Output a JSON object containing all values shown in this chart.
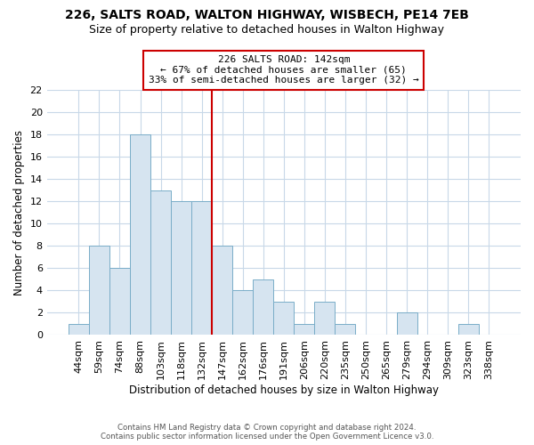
{
  "title_line1": "226, SALTS ROAD, WALTON HIGHWAY, WISBECH, PE14 7EB",
  "title_line2": "Size of property relative to detached houses in Walton Highway",
  "xlabel": "Distribution of detached houses by size in Walton Highway",
  "ylabel": "Number of detached properties",
  "bar_labels": [
    "44sqm",
    "59sqm",
    "74sqm",
    "88sqm",
    "103sqm",
    "118sqm",
    "132sqm",
    "147sqm",
    "162sqm",
    "176sqm",
    "191sqm",
    "206sqm",
    "220sqm",
    "235sqm",
    "250sqm",
    "265sqm",
    "279sqm",
    "294sqm",
    "309sqm",
    "323sqm",
    "338sqm"
  ],
  "bar_values": [
    1,
    8,
    6,
    18,
    13,
    12,
    12,
    8,
    4,
    5,
    3,
    1,
    3,
    1,
    0,
    0,
    2,
    0,
    0,
    1,
    0
  ],
  "bar_color": "#d6e4f0",
  "bar_edge_color": "#7aadc8",
  "vline_x_index": 6.5,
  "annotation_title": "226 SALTS ROAD: 142sqm",
  "annotation_line2": "← 67% of detached houses are smaller (65)",
  "annotation_line3": "33% of semi-detached houses are larger (32) →",
  "vline_color": "#cc0000",
  "annotation_box_edge": "#cc0000",
  "ylim": [
    0,
    22
  ],
  "yticks": [
    0,
    2,
    4,
    6,
    8,
    10,
    12,
    14,
    16,
    18,
    20,
    22
  ],
  "footer_line1": "Contains HM Land Registry data © Crown copyright and database right 2024.",
  "footer_line2": "Contains public sector information licensed under the Open Government Licence v3.0.",
  "bg_color": "#ffffff",
  "grid_color": "#c8d8e8"
}
